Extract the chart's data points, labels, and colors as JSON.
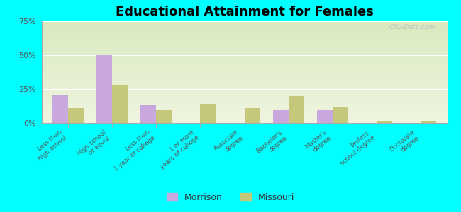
{
  "title": "Educational Attainment for Females",
  "categories": [
    "Less than\nhigh school",
    "High school\nor equiv.",
    "Less than\n1 year of college",
    "1 or more\nyears of college",
    "Associate\ndegree",
    "Bachelor's\ndegree",
    "Master's\ndegree",
    "Profess.\nschool degree",
    "Doctorate\ndegree"
  ],
  "morrison": [
    20.5,
    50.0,
    13.0,
    0.0,
    0.0,
    10.0,
    10.0,
    0.0,
    0.0
  ],
  "missouri": [
    11.0,
    28.0,
    10.0,
    14.0,
    11.0,
    20.0,
    12.0,
    1.5,
    1.5
  ],
  "morrison_color": "#c9a8e0",
  "missouri_color": "#c5c87a",
  "bg_color": "#00ffff",
  "plot_grad_bottom": "#f0f5e0",
  "plot_grad_top": "#d8eac0",
  "ylim": [
    0,
    75
  ],
  "yticks": [
    0,
    25,
    50,
    75
  ],
  "ytick_labels": [
    "0%",
    "25%",
    "50%",
    "75%"
  ],
  "title_fontsize": 13,
  "watermark": " City-Data.com"
}
